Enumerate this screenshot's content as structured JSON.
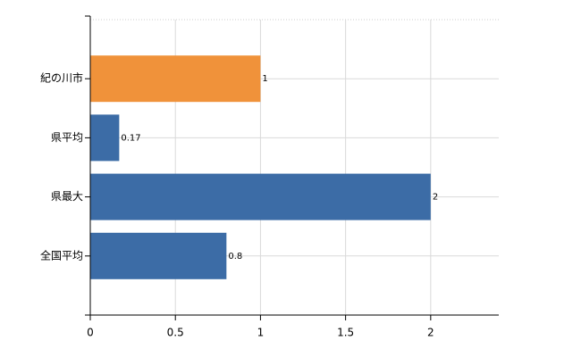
{
  "chart_data": {
    "type": "bar",
    "orientation": "horizontal",
    "categories": [
      "紀の川市",
      "県平均",
      "県最大",
      "全国平均"
    ],
    "values": [
      1,
      0.17,
      2,
      0.8
    ],
    "colors": [
      "#f0923a",
      "#3c6ca6",
      "#3c6ca6",
      "#3c6ca6"
    ],
    "xlim": [
      0,
      2.4
    ],
    "xticks": [
      0,
      0.5,
      1,
      1.5,
      2
    ],
    "grid": true
  }
}
